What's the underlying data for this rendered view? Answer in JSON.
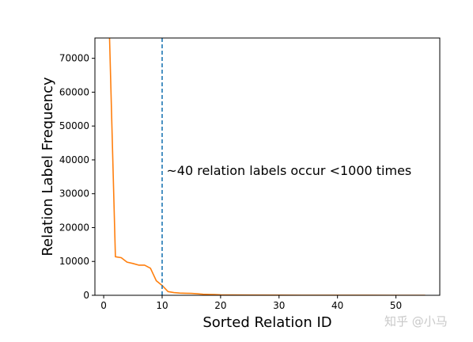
{
  "chart_data": {
    "type": "line",
    "xlabel": "Sorted Relation ID",
    "ylabel": "Relation Label Frequency",
    "xlim": [
      -1.5,
      57.5
    ],
    "ylim": [
      0,
      76000
    ],
    "xticks": [
      0,
      10,
      20,
      30,
      40,
      50
    ],
    "yticks": [
      0,
      10000,
      20000,
      30000,
      40000,
      50000,
      60000,
      70000
    ],
    "grid": false,
    "series": [
      {
        "color": "#ff7f0e",
        "x": [
          1,
          2,
          3,
          4,
          5,
          6,
          7,
          8,
          9,
          10,
          11,
          12,
          13,
          14,
          15,
          16,
          17,
          18,
          19,
          20,
          22,
          25,
          30,
          35,
          40,
          45,
          50,
          55
        ],
        "y": [
          76000,
          11400,
          11100,
          9800,
          9400,
          8900,
          8900,
          8000,
          4300,
          2900,
          1100,
          800,
          650,
          600,
          550,
          450,
          300,
          250,
          200,
          150,
          100,
          70,
          40,
          30,
          20,
          15,
          10,
          5
        ]
      }
    ],
    "vline": {
      "x": 10,
      "color": "#1f77b4",
      "style": "dashed"
    },
    "annotation": {
      "text": "~40 relation labels occur <1000 times",
      "x": 11,
      "y": 37000
    }
  },
  "watermark": "知乎 @小马"
}
